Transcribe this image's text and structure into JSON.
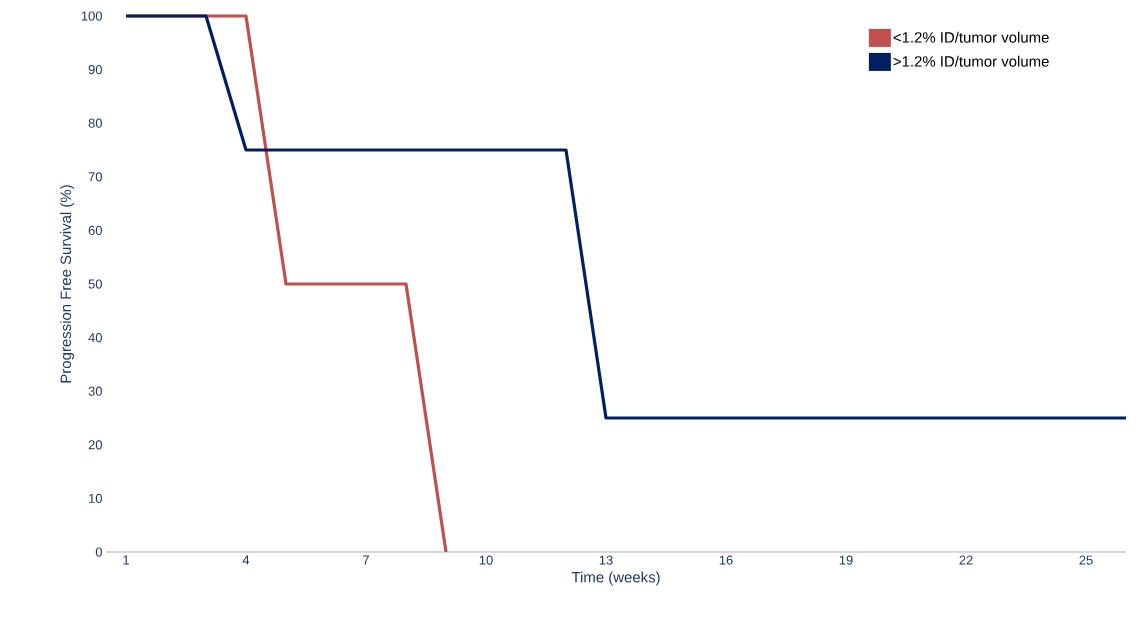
{
  "chart_data": {
    "type": "line",
    "xlabel": "Time (weeks)",
    "ylabel": "Progression Free Survival (%)",
    "xlim": [
      0.5,
      26
    ],
    "ylim": [
      0,
      100
    ],
    "xticks": [
      1,
      4,
      7,
      10,
      13,
      16,
      19,
      22,
      25
    ],
    "yticks": [
      0,
      10,
      20,
      30,
      40,
      50,
      60,
      70,
      80,
      90,
      100
    ],
    "grid": false,
    "legend": "top right",
    "marker": "none",
    "line_style": "solid",
    "series": [
      {
        "name": "<1.2% ID/tumor volume",
        "color": "#c0504d",
        "x": [
          1,
          4,
          5,
          8,
          9
        ],
        "values": [
          100,
          100,
          50,
          50,
          0
        ]
      },
      {
        "name": ">1.2% ID/tumor volume",
        "color": "#002060",
        "x": [
          1,
          3,
          4,
          12,
          13,
          26
        ],
        "values": [
          100,
          100,
          75,
          75,
          25,
          25
        ]
      }
    ]
  }
}
